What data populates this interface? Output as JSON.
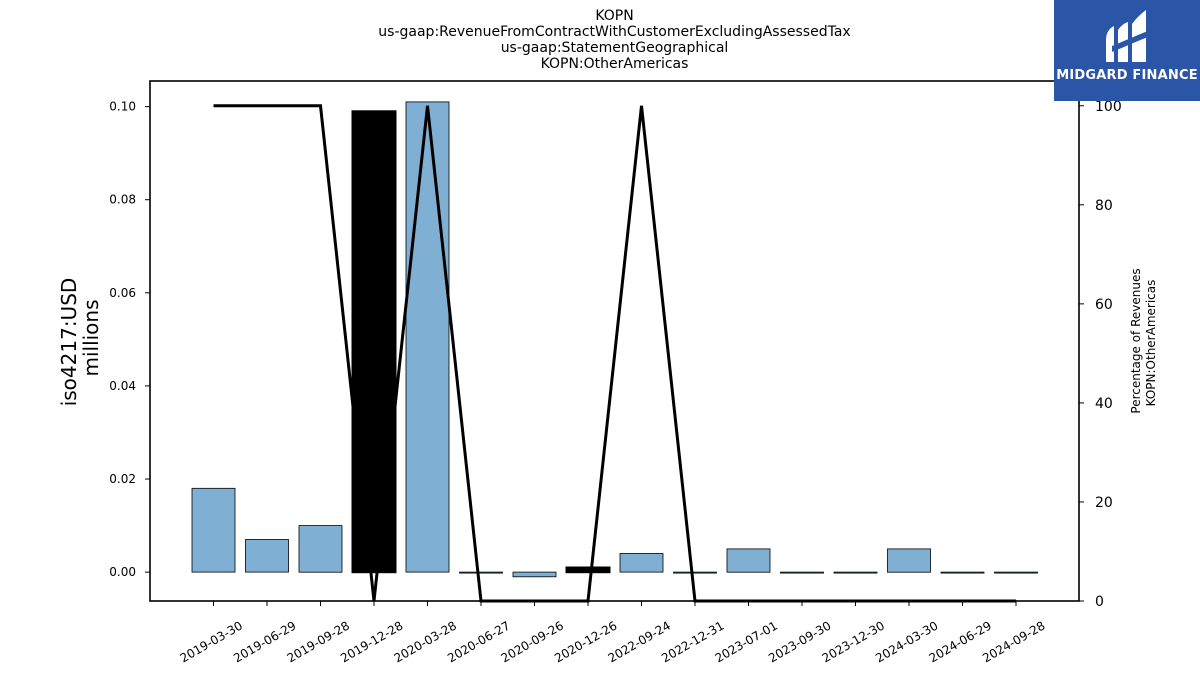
{
  "title_lines": [
    "KOPN",
    "us-gaap:RevenueFromContractWithCustomerExcludingAssessedTax",
    "us-gaap:StatementGeographical",
    "KOPN:OtherAmericas"
  ],
  "logo": {
    "text": "MIDGARD FINANCE",
    "bg_color": "#2b55a6"
  },
  "chart_data": {
    "type": "bar",
    "categories": [
      "2019-03-30",
      "2019-06-29",
      "2019-09-28",
      "2019-12-28",
      "2020-03-28",
      "2020-06-27",
      "2020-09-26",
      "2020-12-26",
      "2022-09-24",
      "2022-12-31",
      "2023-07-01",
      "2023-09-30",
      "2023-12-30",
      "2024-03-30",
      "2024-06-29",
      "2024-09-28"
    ],
    "series": [
      {
        "type": "bar",
        "axis": "left",
        "values": [
          0.018,
          0.007,
          0.01,
          0.099,
          0.101,
          0.0,
          -0.001,
          0.001,
          0.004,
          0.0,
          0.005,
          0.0,
          0.0,
          0.005,
          0.0,
          0.0
        ],
        "colors": [
          "#7fb0d4",
          "#7fb0d4",
          "#7fb0d4",
          "#000000",
          "#7fb0d4",
          "#7fb0d4",
          "#7fb0d4",
          "#000000",
          "#7fb0d4",
          "#7fb0d4",
          "#7fb0d4",
          "#7fb0d4",
          "#7fb0d4",
          "#7fb0d4",
          "#7fb0d4",
          "#7fb0d4"
        ]
      },
      {
        "type": "line",
        "axis": "right",
        "color": "#000000",
        "values": [
          100,
          100,
          100,
          0,
          100,
          0,
          0,
          0,
          100,
          0,
          0,
          0,
          0,
          0,
          0,
          0
        ]
      }
    ],
    "ylabel_lines": [
      "iso4217:USD",
      "millions"
    ],
    "y2label_lines": [
      "Percentage of Revenues",
      "KOPN:OtherAmericas"
    ],
    "ylim": [
      -0.0062,
      0.1055
    ],
    "y2lim": [
      0,
      105
    ],
    "yticks": [
      "0.00",
      "0.02",
      "0.04",
      "0.06",
      "0.08",
      "0.10"
    ],
    "y2ticks": [
      "0",
      "20",
      "40",
      "60",
      "80",
      "100"
    ],
    "grid": false
  }
}
